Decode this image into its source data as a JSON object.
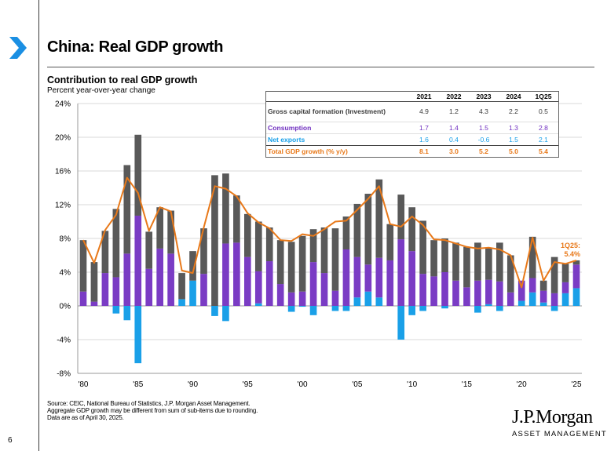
{
  "page": {
    "title": "China: Real GDP growth",
    "page_number": "6",
    "footnotes": [
      "Source: CEIC, National Bureau of Statistics, J.P. Morgan Asset Management.",
      "Aggregate GDP growth may be different from sum of sub-items due to rounding.",
      "Data are as of April 30, 2025."
    ],
    "brand_name": "J.P.Morgan",
    "brand_sub": "ASSET MANAGEMENT"
  },
  "colors": {
    "investment": "#595959",
    "consumption": "#7a3cc4",
    "net_exports": "#1aa0e8",
    "total": "#e8791a",
    "grid": "#d9d9d9"
  },
  "table": {
    "headers": [
      "2021",
      "2022",
      "2023",
      "2024",
      "1Q25"
    ],
    "rows": [
      {
        "label": "Gross capital formation (Investment)",
        "values": [
          "4.9",
          "1.2",
          "4.3",
          "2.2",
          "0.5"
        ]
      },
      {
        "label": "Consumption",
        "values": [
          "1.7",
          "1.4",
          "1.5",
          "1.3",
          "2.8"
        ]
      },
      {
        "label": "Net exports",
        "values": [
          "1.6",
          "0.4",
          "-0.6",
          "1.5",
          "2.1"
        ]
      },
      {
        "label": "Total GDP growth (% y/y)",
        "values": [
          "8.1",
          "3.0",
          "5.2",
          "5.0",
          "5.4"
        ]
      }
    ]
  },
  "chart_data": {
    "type": "bar",
    "stacked": true,
    "title": "Contribution to real GDP growth",
    "subtitle": "Percent year-over-year change",
    "ylim": [
      -8,
      24
    ],
    "yticks": [
      "-8%",
      "-4%",
      "0%",
      "4%",
      "8%",
      "12%",
      "16%",
      "20%",
      "24%"
    ],
    "ytick_values": [
      -8,
      -4,
      0,
      4,
      8,
      12,
      16,
      20,
      24
    ],
    "xtick_labels": [
      "'80",
      "'85",
      "'90",
      "'95",
      "'00",
      "'05",
      "'10",
      "'15",
      "'20",
      "'25"
    ],
    "xtick_years": [
      1980,
      1985,
      1990,
      1995,
      2000,
      2005,
      2010,
      2015,
      2020,
      2025
    ],
    "categories": [
      "1980",
      "1981",
      "1982",
      "1983",
      "1984",
      "1985",
      "1986",
      "1987",
      "1988",
      "1989",
      "1990",
      "1991",
      "1992",
      "1993",
      "1994",
      "1995",
      "1996",
      "1997",
      "1998",
      "1999",
      "2000",
      "2001",
      "2002",
      "2003",
      "2004",
      "2005",
      "2006",
      "2007",
      "2008",
      "2009",
      "2010",
      "2011",
      "2012",
      "2013",
      "2014",
      "2015",
      "2016",
      "2017",
      "2018",
      "2019",
      "2020",
      "2021",
      "2022",
      "2023",
      "2024",
      "1Q25"
    ],
    "series": [
      {
        "name": "Consumption",
        "values": [
          1.7,
          0.5,
          3.9,
          3.4,
          6.2,
          10.7,
          4.4,
          6.8,
          6.2,
          0.0,
          0.0,
          3.8,
          0.0,
          7.4,
          7.5,
          5.8,
          3.8,
          5.3,
          2.6,
          1.6,
          1.7,
          5.2,
          3.9,
          1.8,
          6.7,
          4.8,
          3.2,
          4.7,
          5.4,
          7.9,
          6.5,
          3.8,
          3.5,
          4.0,
          3.0,
          2.2,
          3.0,
          2.9,
          2.9,
          1.6,
          2.4,
          1.7,
          1.4,
          1.5,
          1.3,
          2.8
        ]
      },
      {
        "name": "Investment",
        "values": [
          6.1,
          4.7,
          5.0,
          8.1,
          10.5,
          9.6,
          4.4,
          4.9,
          5.1,
          3.1,
          3.5,
          5.4,
          15.5,
          8.3,
          5.6,
          5.1,
          5.9,
          4.0,
          5.2,
          6.0,
          6.6,
          3.9,
          5.4,
          7.4,
          3.9,
          6.3,
          8.4,
          9.3,
          4.3,
          5.3,
          5.2,
          6.3,
          4.3,
          4.0,
          4.5,
          4.8,
          4.5,
          3.8,
          4.6,
          4.4,
          0.0,
          4.9,
          1.2,
          4.3,
          2.2,
          0.5
        ]
      },
      {
        "name": "Net exports",
        "values": [
          0.0,
          0.0,
          0.0,
          -0.9,
          -1.7,
          -6.8,
          0.0,
          0.0,
          0.0,
          0.8,
          3.0,
          0.0,
          -1.2,
          -1.8,
          0.0,
          0.0,
          0.3,
          0.0,
          0.0,
          -0.7,
          -0.1,
          -1.1,
          0.0,
          -0.6,
          -0.6,
          1.0,
          1.7,
          1.0,
          0.0,
          -4.0,
          -1.1,
          -0.6,
          0.0,
          -0.3,
          0.0,
          0.0,
          -0.8,
          0.2,
          -0.6,
          0.0,
          0.6,
          1.6,
          0.4,
          -0.6,
          1.5,
          2.1
        ]
      },
      {
        "name": "Total GDP growth",
        "type": "line",
        "values": [
          7.8,
          5.1,
          9.0,
          10.8,
          15.2,
          13.4,
          8.9,
          11.7,
          11.2,
          4.2,
          3.9,
          9.3,
          14.2,
          13.9,
          13.0,
          11.0,
          9.9,
          9.2,
          7.8,
          7.7,
          8.5,
          8.3,
          9.1,
          10.0,
          10.1,
          11.4,
          12.7,
          14.2,
          9.7,
          9.4,
          10.6,
          9.6,
          7.9,
          7.8,
          7.4,
          7.0,
          6.8,
          6.9,
          6.7,
          6.0,
          2.2,
          8.1,
          3.0,
          5.2,
          5.0,
          5.4
        ]
      }
    ],
    "annotation": {
      "line1": "1Q25:",
      "line2": "5.4%"
    }
  }
}
